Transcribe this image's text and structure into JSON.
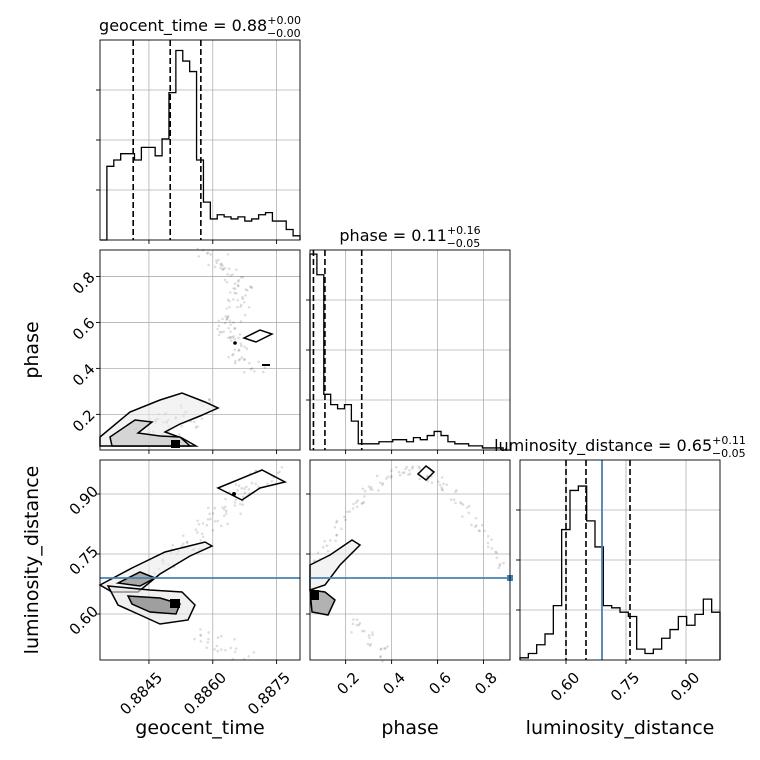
{
  "chart_data": {
    "type": "corner",
    "parameters": [
      "geocent_time",
      "phase",
      "luminosity_distance"
    ],
    "titles": {
      "geocent_time": {
        "label": "geocent_time",
        "median": "0.88",
        "plus": "+0.00",
        "minus": "−0.00"
      },
      "phase": {
        "label": "phase",
        "median": "0.11",
        "plus": "+0.16",
        "minus": "−0.05"
      },
      "luminosity_distance": {
        "label": "luminosity_distance",
        "median": "0.65",
        "plus": "+0.11",
        "minus": "−0.05"
      }
    },
    "ranges": {
      "geocent_time": [
        0.88335,
        0.88805
      ],
      "phase": [
        0.045,
        0.915
      ],
      "luminosity_distance": [
        0.485,
        0.985
      ]
    },
    "ticks": {
      "geocent_time": [
        0.8845,
        0.886,
        0.8875
      ],
      "geocent_time_labels": [
        "0.8845",
        "0.8860",
        "0.8875"
      ],
      "phase": [
        0.2,
        0.4,
        0.6,
        0.8
      ],
      "phase_labels": [
        "0.2",
        "0.4",
        "0.6",
        "0.8"
      ],
      "luminosity_distance": [
        0.6,
        0.75,
        0.9
      ],
      "luminosity_distance_labels": [
        "0.60",
        "0.75",
        "0.90"
      ]
    },
    "quantiles": {
      "geocent_time": [
        0.88413,
        0.885,
        0.88572
      ],
      "phase": [
        0.06,
        0.11,
        0.27
      ],
      "luminosity_distance": [
        0.6,
        0.65,
        0.76
      ]
    },
    "truths": {
      "luminosity_distance": 0.69
    },
    "histograms": {
      "geocent_time": {
        "counts": [
          0,
          0.35,
          0.38,
          0.41,
          0.41,
          0.38,
          0.44,
          0.44,
          0.4,
          0.48,
          0.7,
          0.9,
          0.85,
          0.8,
          0.38,
          0.18,
          0.1,
          0.12,
          0.11,
          0.1,
          0.11,
          0.09,
          0.1,
          0.12,
          0.13,
          0.09,
          0.09,
          0.05,
          0.02
        ],
        "max": 0.95
      },
      "phase": {
        "counts": [
          0.95,
          0.85,
          0.27,
          0.22,
          0.2,
          0.22,
          0.14,
          0.03,
          0.03,
          0.03,
          0.04,
          0.04,
          0.05,
          0.05,
          0.04,
          0.06,
          0.05,
          0.07,
          0.09,
          0.07,
          0.04,
          0.03,
          0.03,
          0.02,
          0.02,
          0.01,
          0.01,
          0.01,
          0
        ],
        "max": 0.97
      },
      "luminosity_distance": {
        "counts": [
          0.01,
          0.03,
          0.07,
          0.12,
          0.25,
          0.6,
          0.78,
          0.8,
          0.64,
          0.52,
          0.25,
          0.24,
          0.22,
          0.2,
          0.05,
          0.03,
          0.05,
          0.1,
          0.14,
          0.2,
          0.16,
          0.21,
          0.28,
          0.22
        ],
        "max": 0.92
      }
    },
    "grid": true
  }
}
